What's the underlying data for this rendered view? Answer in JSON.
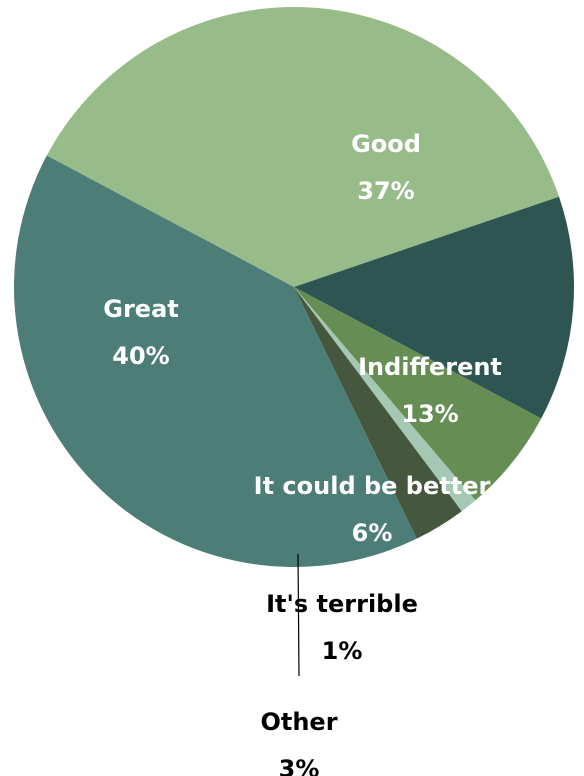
{
  "chart_data": {
    "type": "pie",
    "slices": [
      {
        "name": "Good",
        "value": 37,
        "value_label": "37%",
        "color": "#97bc89",
        "label_color": "#ffffff"
      },
      {
        "name": "Indifferent",
        "value": 13,
        "value_label": "13%",
        "color": "#2e5552",
        "label_color": "#ffffff"
      },
      {
        "name": "It could be better",
        "value": 6,
        "value_label": "6%",
        "color": "#668d54",
        "label_color": "#ffffff"
      },
      {
        "name": "It's terrible",
        "value": 1,
        "value_label": "1%",
        "color": "#a4c8b3",
        "label_color": "#000000"
      },
      {
        "name": "Other",
        "value": 3,
        "value_label": "3%",
        "color": "#45583d",
        "label_color": "#000000"
      },
      {
        "name": "Great",
        "value": 40,
        "value_label": "40%",
        "color": "#4c7d77",
        "label_color": "#ffffff"
      }
    ]
  }
}
